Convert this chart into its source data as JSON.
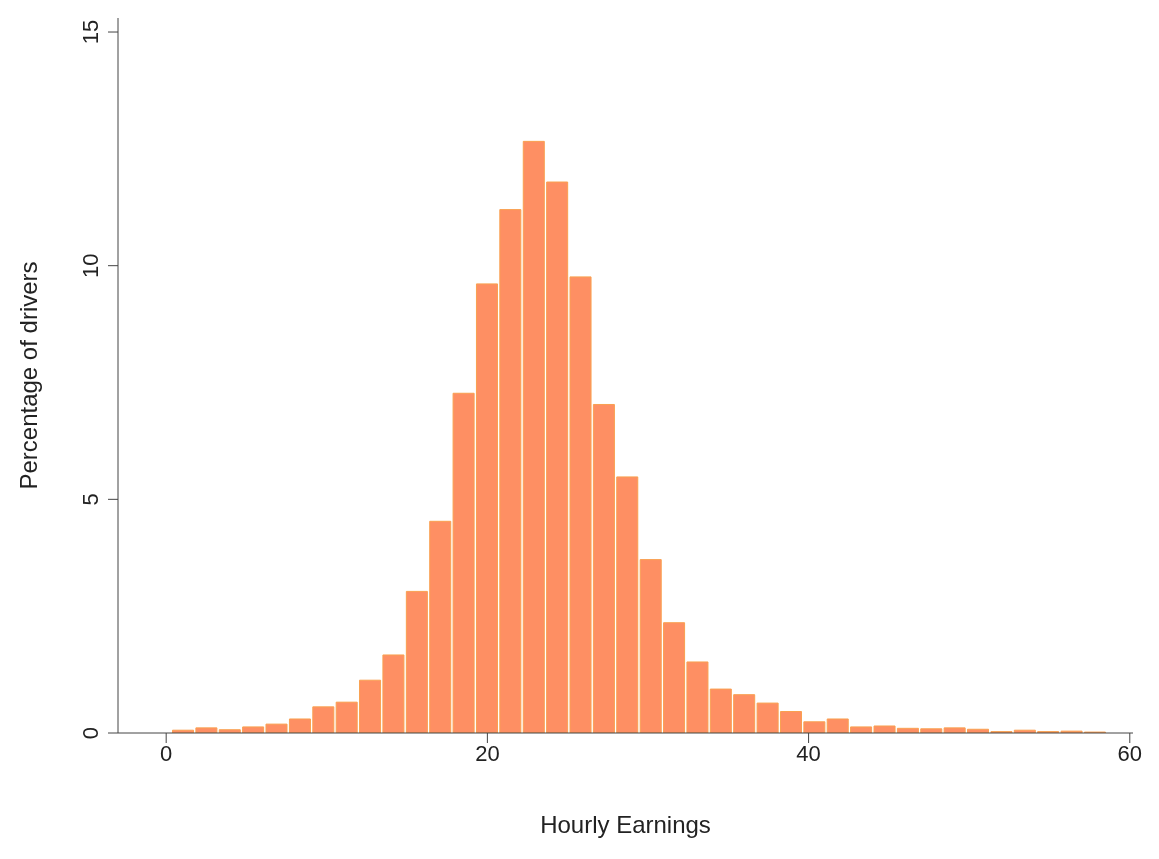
{
  "chart_data": {
    "type": "histogram",
    "xlabel": "Hourly Earnings",
    "ylabel": "Percentage of drivers",
    "bins": [
      0.33,
      1.79,
      3.24,
      4.7,
      6.15,
      7.61,
      9.07,
      10.52,
      11.98,
      13.43,
      14.89,
      16.35,
      17.8,
      19.26,
      20.71,
      22.17,
      23.63,
      25.08,
      26.54,
      27.99,
      29.45,
      30.91,
      32.36,
      33.82,
      35.27,
      36.73,
      38.19,
      39.64,
      41.1,
      42.55,
      44.01,
      45.47,
      46.92,
      48.38,
      49.83,
      51.29,
      52.75,
      54.2,
      55.66,
      57.11,
      58.57
    ],
    "values": [
      0.06,
      0.11,
      0.07,
      0.13,
      0.19,
      0.3,
      0.56,
      0.66,
      1.13,
      1.67,
      3.03,
      4.53,
      7.27,
      9.61,
      11.2,
      12.66,
      11.79,
      9.76,
      7.03,
      5.48,
      3.71,
      2.36,
      1.52,
      0.94,
      0.82,
      0.64,
      0.46,
      0.24,
      0.3,
      0.13,
      0.15,
      0.1,
      0.09,
      0.11,
      0.08,
      0.03,
      0.06,
      0.03,
      0.04,
      0.02
    ],
    "color": "#fe8f63",
    "xlim": [
      -3,
      60.2
    ],
    "xticks": [
      0,
      20,
      40,
      60
    ],
    "ylim": [
      0,
      15.3
    ],
    "yticks": [
      0,
      5,
      10,
      15
    ],
    "grid": false,
    "legend": false
  }
}
